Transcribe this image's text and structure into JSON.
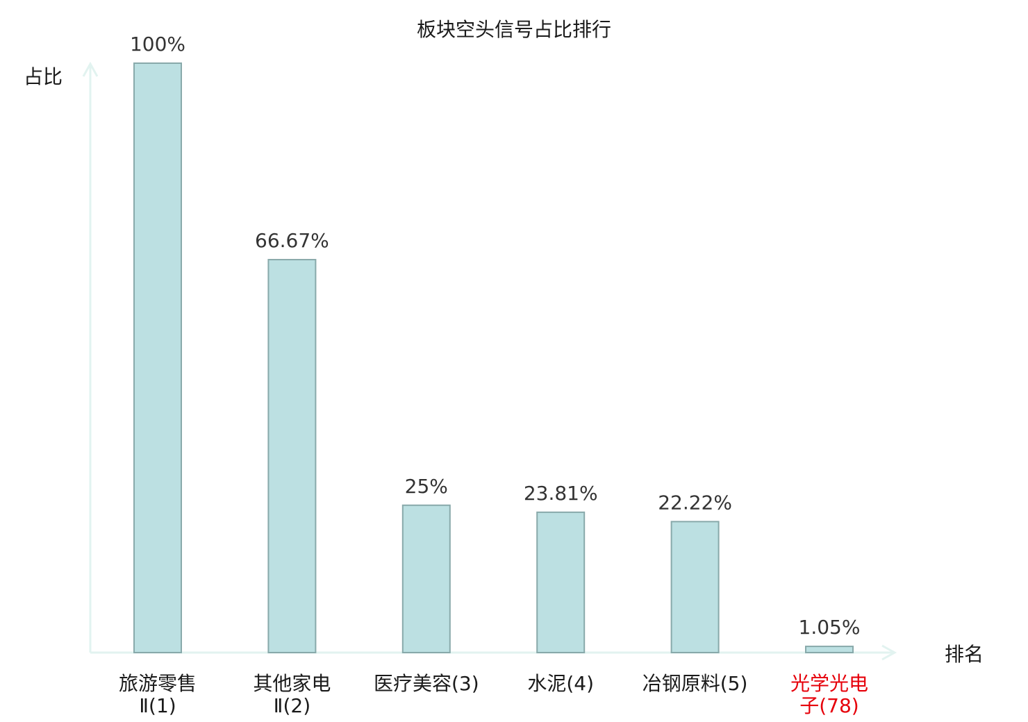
{
  "chart_data": {
    "type": "bar",
    "title": "板块空头信号占比排行",
    "ylabel": "占比",
    "xlabel": "排名",
    "ylim": [
      0,
      100
    ],
    "grid": false,
    "highlight_color": "#e6000a",
    "bar_color": "#bce0e2",
    "bar_stroke_color": "#88a9aa",
    "axis_color": "#e2f3f0",
    "categories": [
      {
        "lines": [
          "旅游零售",
          "Ⅱ(1)"
        ],
        "value": 100,
        "label": "100%",
        "highlight": false
      },
      {
        "lines": [
          "其他家电",
          "Ⅱ(2)"
        ],
        "value": 66.67,
        "label": "66.67%",
        "highlight": false
      },
      {
        "lines": [
          "医疗美容(3)"
        ],
        "value": 25,
        "label": "25%",
        "highlight": false
      },
      {
        "lines": [
          "水泥(4)"
        ],
        "value": 23.81,
        "label": "23.81%",
        "highlight": false
      },
      {
        "lines": [
          "冶钢原料(5)"
        ],
        "value": 22.22,
        "label": "22.22%",
        "highlight": false
      },
      {
        "lines": [
          "光学光电",
          "子(78)"
        ],
        "value": 1.05,
        "label": "1.05%",
        "highlight": true
      }
    ]
  }
}
